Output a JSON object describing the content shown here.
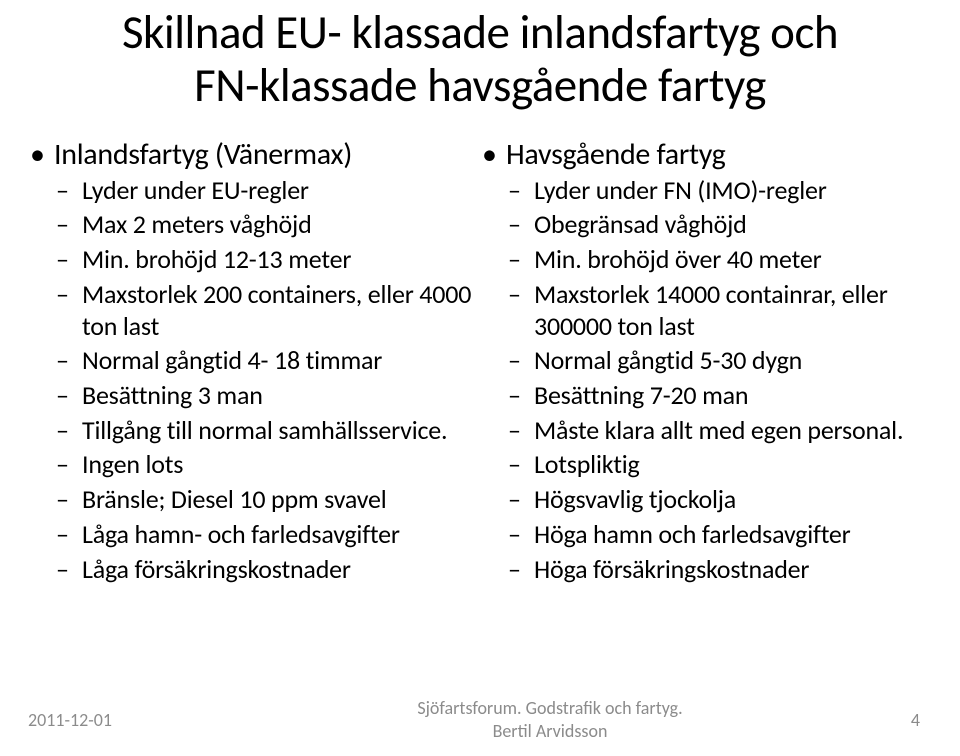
{
  "title_line1": "Skillnad EU- klassade inlandsfartyg och",
  "title_line2": "FN-klassade havsgående fartyg",
  "left": {
    "heading": "Inlandsfartyg (Vänermax)",
    "items": [
      "Lyder under EU-regler",
      "Max 2 meters våghöjd",
      "Min. brohöjd 12-13 meter",
      "Maxstorlek 200 containers, eller 4000 ton last",
      "Normal gångtid 4- 18 timmar",
      "Besättning 3 man",
      "Tillgång till normal samhällsservice.",
      "Ingen lots",
      "Bränsle; Diesel 10 ppm svavel",
      "Låga hamn- och farledsavgifter",
      "Låga försäkringskostnader"
    ]
  },
  "right": {
    "heading": "Havsgående fartyg",
    "items": [
      "Lyder under FN (IMO)-regler",
      "Obegränsad våghöjd",
      "Min. brohöjd över 40 meter",
      "Maxstorlek 14000 containrar, eller 300000 ton last",
      "Normal gångtid 5-30 dygn",
      "Besättning 7-20 man",
      "Måste klara allt med egen personal.",
      "Lotspliktig",
      "Högsvavlig tjockolja",
      "Höga  hamn och farledsavgifter",
      "Höga försäkringskostnader"
    ]
  },
  "footer": {
    "date": "2011-12-01",
    "center_line1": "Sjöfartsforum. Godstrafik och fartyg.",
    "center_line2": "Bertil Arvidsson",
    "page": "4"
  }
}
